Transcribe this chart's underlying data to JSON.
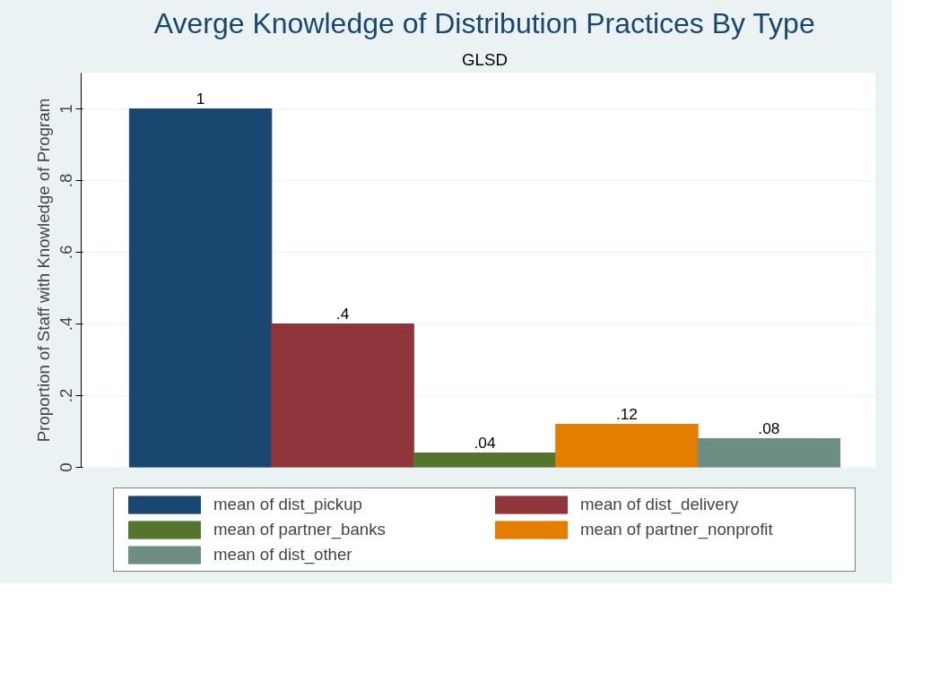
{
  "chart_data": {
    "type": "bar",
    "title": "Averge Knowledge of Distribution Practices By Type",
    "subtitle": "GLSD",
    "ylabel": "Proportion of Staff with Knowledge of Program",
    "categories": [
      null
    ],
    "series": [
      {
        "name": "mean of dist_pickup",
        "color": "#1a476f",
        "values": [
          1
        ],
        "value_labels": [
          "1"
        ]
      },
      {
        "name": "mean of dist_delivery",
        "color": "#90353b",
        "values": [
          0.4
        ],
        "value_labels": [
          ".4"
        ]
      },
      {
        "name": "mean of partner_banks",
        "color": "#55752f",
        "values": [
          0.04
        ],
        "value_labels": [
          ".04"
        ]
      },
      {
        "name": "mean of partner_nonprofit",
        "color": "#e37e00",
        "values": [
          0.12
        ],
        "value_labels": [
          ".12"
        ]
      },
      {
        "name": "mean of dist_other",
        "color": "#6e8e84",
        "values": [
          0.08
        ],
        "value_labels": [
          ".08"
        ]
      }
    ],
    "ylim": [
      0,
      1.1
    ],
    "yticks": [
      {
        "value": 0,
        "label": "0"
      },
      {
        "value": 0.2,
        "label": ".2"
      },
      {
        "value": 0.4,
        "label": ".4"
      },
      {
        "value": 0.6,
        "label": ".6"
      },
      {
        "value": 0.8,
        "label": ".8"
      },
      {
        "value": 1,
        "label": "1"
      }
    ],
    "grid": "y",
    "legend": "bottom",
    "tick_labels": "y"
  }
}
